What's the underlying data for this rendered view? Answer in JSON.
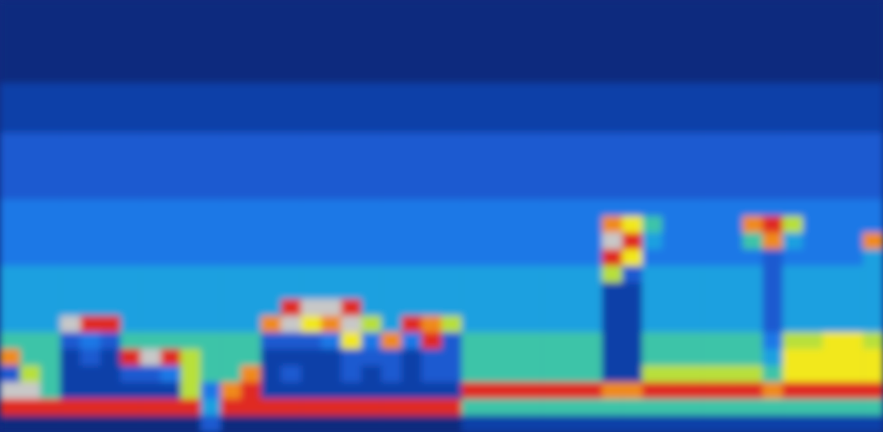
{
  "chart_data": {
    "type": "heatmap",
    "tick_labels": false,
    "zlim": [
      0,
      10
    ],
    "cells": [
      [
        0,
        0,
        0,
        0,
        0,
        0,
        0,
        0,
        0,
        0,
        0,
        0,
        0,
        0,
        0,
        0,
        0,
        0,
        0,
        0,
        0,
        0,
        0,
        0,
        0,
        0,
        0,
        0,
        0,
        0,
        0,
        0,
        0,
        0,
        0,
        0,
        0,
        0,
        0,
        0,
        0,
        0,
        0,
        0
      ],
      [
        0,
        0,
        0,
        0,
        0,
        0,
        0,
        0,
        0,
        0,
        0,
        0,
        0,
        0,
        0,
        0,
        0,
        0,
        0,
        0,
        0,
        0,
        0,
        0,
        0,
        0,
        0,
        0,
        0,
        0,
        0,
        0,
        0,
        0,
        0,
        0,
        0,
        0,
        0,
        0,
        0,
        0,
        0,
        0
      ],
      [
        0,
        0,
        0,
        0,
        0,
        0,
        0,
        0,
        0,
        0,
        0,
        0,
        0,
        0,
        0,
        0,
        0,
        0,
        0,
        0,
        0,
        0,
        0,
        0,
        0,
        0,
        0,
        0,
        0,
        0,
        0,
        0,
        0,
        0,
        0,
        0,
        0,
        0,
        0,
        0,
        0,
        0,
        0,
        0
      ],
      [
        0,
        0,
        0,
        0,
        0,
        0,
        0,
        0,
        0,
        0,
        0,
        0,
        0,
        0,
        0,
        0,
        0,
        0,
        0,
        0,
        0,
        0,
        0,
        0,
        0,
        0,
        0,
        0,
        0,
        0,
        0,
        0,
        0,
        0,
        0,
        0,
        0,
        0,
        0,
        0,
        0,
        0,
        0,
        0
      ],
      [
        0,
        0,
        0,
        0,
        0,
        0,
        0,
        0,
        0,
        0,
        0,
        0,
        0,
        0,
        0,
        0,
        0,
        0,
        0,
        0,
        0,
        0,
        0,
        0,
        0,
        0,
        0,
        0,
        0,
        0,
        0,
        0,
        0,
        0,
        0,
        0,
        0,
        0,
        0,
        0,
        0,
        0,
        0,
        0
      ],
      [
        1,
        1,
        1,
        1,
        1,
        1,
        1,
        1,
        1,
        1,
        1,
        1,
        1,
        1,
        1,
        1,
        1,
        1,
        1,
        1,
        1,
        1,
        1,
        1,
        1,
        1,
        1,
        1,
        1,
        1,
        1,
        1,
        1,
        1,
        1,
        1,
        1,
        1,
        1,
        1,
        1,
        1,
        1,
        1
      ],
      [
        1,
        1,
        1,
        1,
        1,
        1,
        1,
        1,
        1,
        1,
        1,
        1,
        1,
        1,
        1,
        1,
        1,
        1,
        1,
        1,
        1,
        1,
        1,
        1,
        1,
        1,
        1,
        1,
        1,
        1,
        1,
        1,
        1,
        1,
        1,
        1,
        1,
        1,
        1,
        1,
        1,
        1,
        1,
        1
      ],
      [
        1,
        1,
        1,
        1,
        1,
        1,
        1,
        1,
        1,
        1,
        1,
        1,
        1,
        1,
        1,
        1,
        1,
        1,
        1,
        1,
        1,
        1,
        1,
        1,
        1,
        1,
        1,
        1,
        1,
        1,
        1,
        1,
        1,
        1,
        1,
        1,
        1,
        1,
        1,
        1,
        1,
        1,
        1,
        1
      ],
      [
        2,
        2,
        2,
        2,
        2,
        2,
        2,
        2,
        2,
        2,
        2,
        2,
        2,
        2,
        2,
        2,
        2,
        2,
        2,
        2,
        2,
        2,
        2,
        2,
        2,
        2,
        2,
        2,
        2,
        2,
        2,
        2,
        2,
        2,
        2,
        2,
        2,
        2,
        2,
        2,
        2,
        2,
        2,
        2
      ],
      [
        2,
        2,
        2,
        2,
        2,
        2,
        2,
        2,
        2,
        2,
        2,
        2,
        2,
        2,
        2,
        2,
        2,
        2,
        2,
        2,
        2,
        2,
        2,
        2,
        2,
        2,
        2,
        2,
        2,
        2,
        2,
        2,
        2,
        2,
        2,
        2,
        2,
        2,
        2,
        2,
        2,
        2,
        2,
        2
      ],
      [
        2,
        2,
        2,
        2,
        2,
        2,
        2,
        2,
        2,
        2,
        2,
        2,
        2,
        2,
        2,
        2,
        2,
        2,
        2,
        2,
        2,
        2,
        2,
        2,
        2,
        2,
        2,
        2,
        2,
        2,
        2,
        2,
        2,
        2,
        2,
        2,
        2,
        2,
        2,
        2,
        2,
        2,
        2,
        2
      ],
      [
        2,
        2,
        2,
        2,
        2,
        2,
        2,
        2,
        2,
        2,
        2,
        2,
        2,
        2,
        2,
        2,
        2,
        2,
        2,
        2,
        2,
        2,
        2,
        2,
        2,
        2,
        2,
        2,
        2,
        2,
        2,
        2,
        2,
        2,
        2,
        2,
        2,
        2,
        2,
        2,
        2,
        2,
        2,
        2
      ],
      [
        3,
        3,
        3,
        3,
        3,
        3,
        3,
        3,
        3,
        3,
        3,
        3,
        3,
        3,
        3,
        3,
        3,
        3,
        3,
        3,
        3,
        3,
        3,
        3,
        3,
        3,
        3,
        3,
        3,
        3,
        3,
        3,
        3,
        3,
        3,
        3,
        3,
        3,
        3,
        3,
        3,
        3,
        3,
        3
      ],
      [
        3,
        3,
        3,
        3,
        3,
        3,
        3,
        3,
        3,
        3,
        3,
        3,
        3,
        3,
        3,
        3,
        3,
        3,
        3,
        3,
        3,
        3,
        3,
        3,
        3,
        3,
        3,
        3,
        3,
        3,
        8,
        7,
        5,
        3,
        3,
        3,
        3,
        8,
        9,
        6,
        3,
        3,
        3,
        3
      ],
      [
        3,
        3,
        3,
        3,
        3,
        3,
        3,
        3,
        3,
        3,
        3,
        3,
        3,
        3,
        3,
        3,
        3,
        3,
        3,
        3,
        3,
        3,
        3,
        3,
        3,
        3,
        3,
        3,
        3,
        3,
        10,
        9,
        4,
        3,
        3,
        3,
        3,
        5,
        8,
        4,
        3,
        3,
        3,
        8
      ],
      [
        3,
        3,
        3,
        3,
        3,
        3,
        3,
        3,
        3,
        3,
        3,
        3,
        3,
        3,
        3,
        3,
        3,
        3,
        3,
        3,
        3,
        3,
        3,
        3,
        3,
        3,
        3,
        3,
        3,
        3,
        9,
        7,
        3,
        3,
        3,
        3,
        3,
        3,
        2,
        3,
        3,
        3,
        3,
        4
      ],
      [
        4,
        4,
        4,
        4,
        4,
        4,
        4,
        4,
        4,
        4,
        4,
        4,
        4,
        4,
        4,
        4,
        4,
        4,
        4,
        4,
        4,
        4,
        4,
        4,
        4,
        4,
        4,
        4,
        4,
        4,
        6,
        2,
        4,
        4,
        4,
        4,
        4,
        4,
        2,
        4,
        4,
        4,
        4,
        4
      ],
      [
        4,
        4,
        4,
        4,
        4,
        4,
        4,
        4,
        4,
        4,
        4,
        4,
        4,
        4,
        4,
        4,
        4,
        4,
        4,
        4,
        4,
        4,
        4,
        4,
        4,
        4,
        4,
        4,
        4,
        4,
        1,
        1,
        4,
        4,
        4,
        4,
        4,
        4,
        2,
        4,
        4,
        4,
        4,
        4
      ],
      [
        4,
        4,
        4,
        4,
        4,
        4,
        4,
        4,
        4,
        4,
        4,
        4,
        4,
        4,
        9,
        10,
        10,
        9,
        4,
        4,
        4,
        4,
        4,
        4,
        4,
        4,
        4,
        4,
        4,
        4,
        1,
        1,
        4,
        4,
        4,
        4,
        4,
        4,
        2,
        4,
        4,
        4,
        4,
        4
      ],
      [
        4,
        4,
        4,
        10,
        9,
        9,
        4,
        4,
        4,
        4,
        4,
        4,
        4,
        8,
        10,
        7,
        8,
        10,
        6,
        4,
        9,
        8,
        6,
        4,
        4,
        4,
        4,
        4,
        4,
        4,
        1,
        1,
        4,
        4,
        4,
        4,
        4,
        4,
        2,
        4,
        4,
        4,
        4,
        4
      ],
      [
        5,
        5,
        5,
        2,
        3,
        2,
        5,
        5,
        5,
        5,
        5,
        5,
        5,
        2,
        2,
        2,
        3,
        7,
        3,
        8,
        3,
        9,
        2,
        5,
        5,
        5,
        5,
        5,
        5,
        5,
        1,
        1,
        5,
        5,
        5,
        5,
        5,
        5,
        3,
        6,
        6,
        7,
        7,
        6
      ],
      [
        8,
        5,
        5,
        1,
        2,
        1,
        9,
        10,
        9,
        6,
        5,
        5,
        5,
        1,
        1,
        1,
        1,
        2,
        2,
        2,
        1,
        2,
        2,
        5,
        5,
        5,
        5,
        5,
        5,
        5,
        1,
        1,
        5,
        5,
        5,
        5,
        5,
        5,
        4,
        7,
        7,
        7,
        7,
        7
      ],
      [
        2,
        6,
        5,
        1,
        1,
        1,
        2,
        2,
        3,
        6,
        5,
        5,
        8,
        1,
        2,
        1,
        1,
        2,
        1,
        2,
        1,
        2,
        2,
        5,
        5,
        5,
        5,
        5,
        5,
        5,
        1,
        1,
        6,
        6,
        6,
        6,
        6,
        6,
        5,
        7,
        7,
        7,
        7,
        7
      ],
      [
        10,
        10,
        5,
        1,
        1,
        1,
        1,
        1,
        1,
        6,
        3,
        8,
        9,
        1,
        1,
        1,
        1,
        1,
        1,
        1,
        1,
        1,
        1,
        9,
        9,
        9,
        9,
        9,
        9,
        9,
        8,
        8,
        9,
        9,
        9,
        9,
        9,
        9,
        8,
        9,
        9,
        9,
        9,
        9
      ],
      [
        9,
        9,
        9,
        9,
        9,
        9,
        9,
        9,
        9,
        9,
        4,
        9,
        9,
        9,
        9,
        9,
        9,
        9,
        9,
        9,
        9,
        9,
        9,
        5,
        5,
        5,
        5,
        5,
        5,
        5,
        5,
        5,
        5,
        5,
        5,
        5,
        5,
        5,
        5,
        5,
        5,
        5,
        5,
        5
      ],
      [
        0,
        0,
        0,
        0,
        0,
        0,
        0,
        0,
        0,
        0,
        2,
        0,
        0,
        0,
        0,
        0,
        0,
        0,
        0,
        0,
        0,
        0,
        0,
        1,
        1,
        1,
        1,
        1,
        1,
        1,
        1,
        1,
        1,
        1,
        1,
        1,
        1,
        1,
        1,
        1,
        1,
        1,
        1,
        1
      ]
    ]
  }
}
